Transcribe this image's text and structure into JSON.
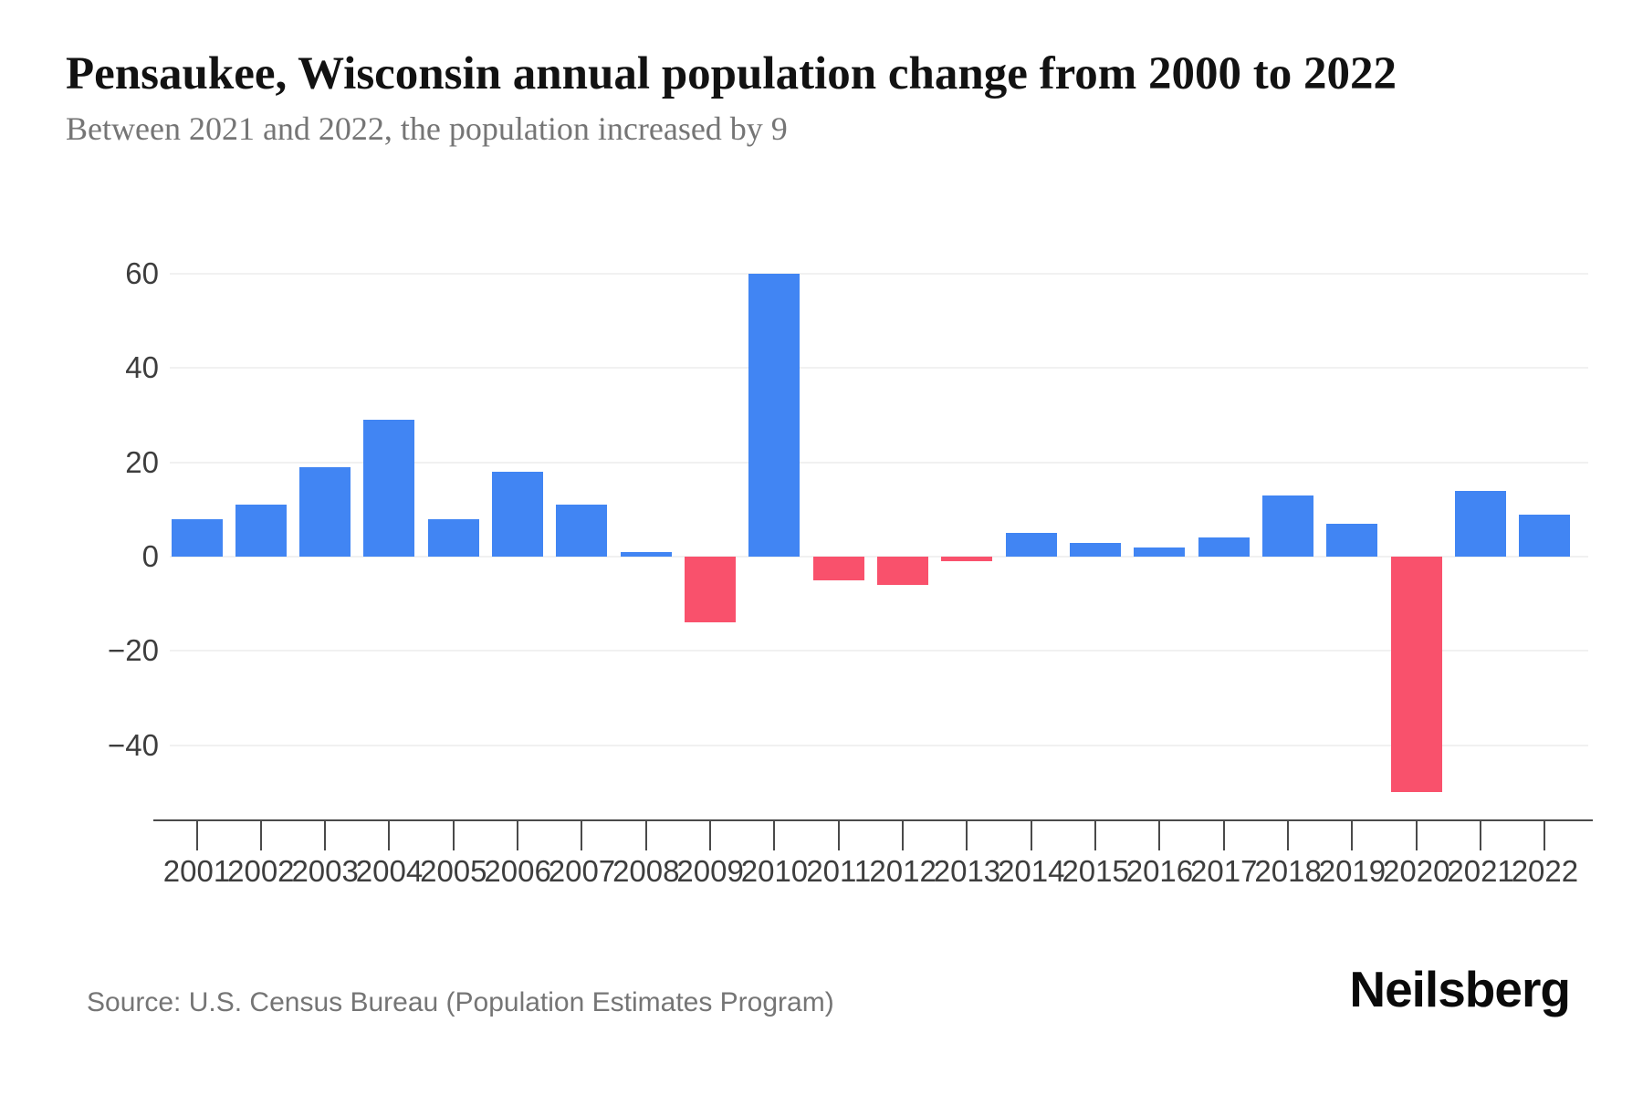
{
  "header": {
    "title": "Pensaukee, Wisconsin annual population change from 2000 to 2022",
    "subtitle": "Between 2021 and 2022, the population increased by 9"
  },
  "footer": {
    "source": "Source: U.S. Census Bureau (Population Estimates Program)",
    "brand": "Neilsberg"
  },
  "colors": {
    "positive_bar": "#4185f3",
    "negative_bar": "#f9516c",
    "gridline": "#f1f1f1",
    "axis": "#4a4a4a",
    "title_text": "#121212",
    "muted_text": "#757575",
    "tick_text": "#3d3d3d"
  },
  "chart_data": {
    "type": "bar",
    "title": "Pensaukee, Wisconsin annual population change from 2000 to 2022",
    "subtitle": "Between 2021 and 2022, the population increased by 9",
    "xlabel": "",
    "ylabel": "",
    "categories": [
      "2001",
      "2002",
      "2003",
      "2004",
      "2005",
      "2006",
      "2007",
      "2008",
      "2009",
      "2010",
      "2011",
      "2012",
      "2013",
      "2014",
      "2015",
      "2016",
      "2017",
      "2018",
      "2019",
      "2020",
      "2021",
      "2022"
    ],
    "values": [
      8,
      11,
      19,
      29,
      8,
      18,
      11,
      1,
      -14,
      60,
      -5,
      -6,
      -1,
      5,
      3,
      2,
      4,
      13,
      7,
      -50,
      14,
      9
    ],
    "yticks": [
      60,
      40,
      20,
      0,
      -20,
      -40
    ],
    "ytick_labels": [
      "60",
      "40",
      "20",
      "0",
      "−20",
      "−40"
    ],
    "ylim": [
      -56,
      64
    ],
    "grid": "horizontal",
    "legend": "none"
  }
}
